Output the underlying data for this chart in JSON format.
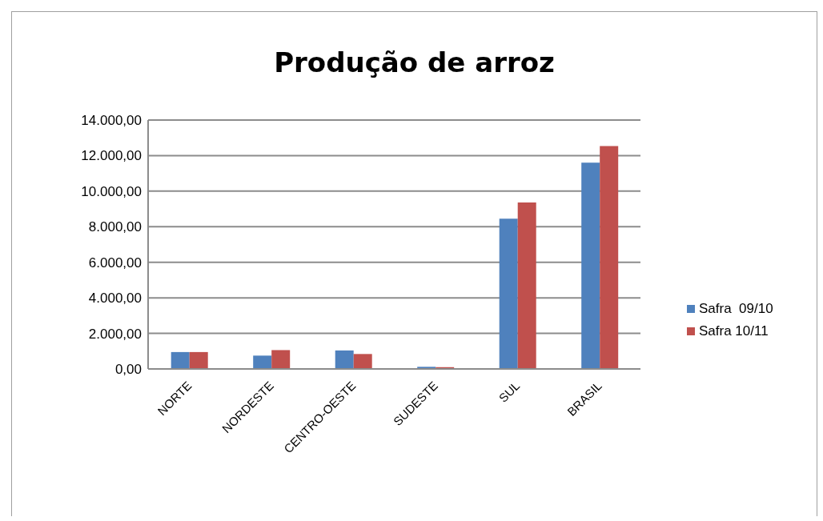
{
  "chart_data": {
    "type": "bar",
    "title": "Produção de arroz",
    "categories": [
      "NORTE",
      "NORDESTE",
      "CENTRO-OESTE",
      "SUDESTE",
      "SUL",
      "BRASIL"
    ],
    "series": [
      {
        "name": "Safra  09/10",
        "color": "#4f81bd",
        "values": [
          950,
          750,
          1040,
          120,
          8450,
          11600
        ]
      },
      {
        "name": "Safra 10/11",
        "color": "#c0504d",
        "values": [
          950,
          1060,
          840,
          100,
          9360,
          12540
        ]
      }
    ],
    "ylim": [
      0,
      14000
    ],
    "yticks": [
      {
        "value": 0,
        "label": "0,00"
      },
      {
        "value": 2000,
        "label": "2.000,00"
      },
      {
        "value": 4000,
        "label": "4.000,00"
      },
      {
        "value": 6000,
        "label": "6.000,00"
      },
      {
        "value": 8000,
        "label": "8.000,00"
      },
      {
        "value": 10000,
        "label": "10.000,00"
      },
      {
        "value": 12000,
        "label": "12.000,00"
      },
      {
        "value": 14000,
        "label": "14.000,00"
      }
    ],
    "grid": "y",
    "legend": "right"
  }
}
